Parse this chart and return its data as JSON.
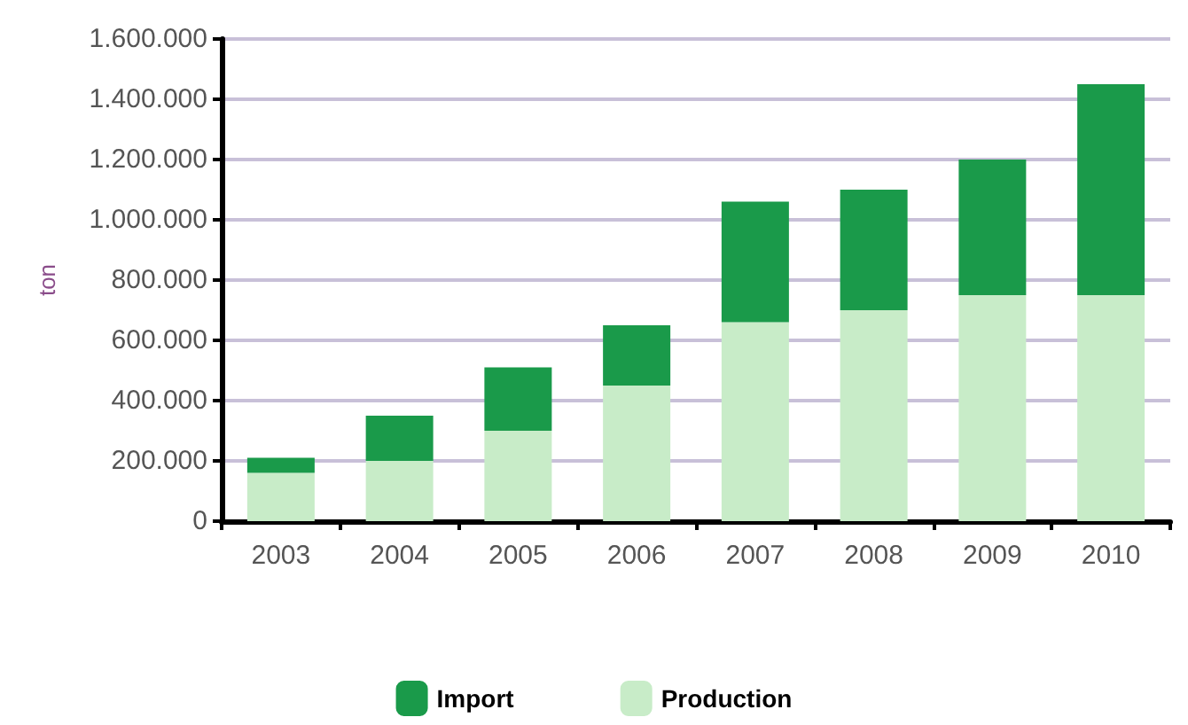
{
  "chart_data": {
    "type": "bar",
    "stacked": true,
    "ylabel": "ton",
    "categories": [
      "2003",
      "2004",
      "2005",
      "2006",
      "2007",
      "2008",
      "2009",
      "2010"
    ],
    "series": [
      {
        "name": "Production",
        "color": "#c8ecc8",
        "values": [
          160000,
          200000,
          300000,
          450000,
          660000,
          700000,
          750000,
          750000
        ]
      },
      {
        "name": "Import",
        "color": "#1a9a4a",
        "values": [
          50000,
          150000,
          210000,
          200000,
          400000,
          400000,
          450000,
          700000
        ]
      }
    ],
    "ylim": [
      0,
      1600000
    ],
    "yticks": [
      0,
      {
        "value": 200000,
        "label": "200.000"
      },
      {
        "value": 400000,
        "label": "400.000"
      },
      {
        "value": 600000,
        "label": "600.000"
      },
      {
        "value": 800000,
        "label": "800.000"
      },
      {
        "value": 1000000,
        "label": "1.000.000"
      },
      {
        "value": 1200000,
        "label": "1.200.000"
      },
      {
        "value": 1400000,
        "label": "1.400.000"
      },
      {
        "value": 1600000,
        "label": "1.600.000"
      }
    ],
    "grid": "y",
    "legend": "bottom"
  }
}
